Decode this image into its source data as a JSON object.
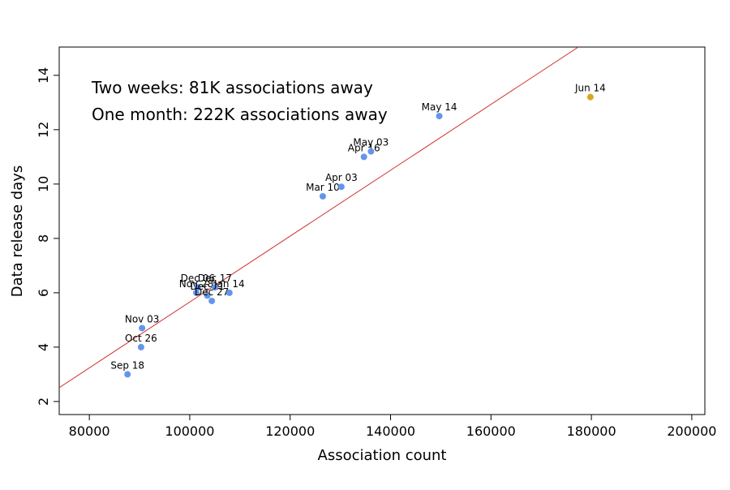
{
  "chart_data": {
    "type": "scatter",
    "xlabel": "Association count",
    "ylabel": "Data release days",
    "annotations": [
      "Two weeks: 81K associations away",
      "One month: 222K associations away"
    ],
    "labels": [
      "Sep 18",
      "Oct 26",
      "Nov 03",
      "Nov 28",
      "Dec 06",
      "Dec 21",
      "Dec 27",
      "Dec 17",
      "Jan 14",
      "Mar 10",
      "Apr 03",
      "Apr 16",
      "May 03",
      "May 14",
      "Jun 14"
    ],
    "x": [
      87600,
      90300,
      90500,
      101300,
      101600,
      103500,
      104400,
      105000,
      107900,
      126500,
      130200,
      134700,
      136100,
      149700,
      179800
    ],
    "y": [
      3.0,
      4.0,
      4.7,
      6.0,
      6.2,
      5.9,
      5.7,
      6.2,
      6.0,
      9.55,
      9.9,
      11.0,
      11.2,
      12.5,
      13.2
    ],
    "colors": [
      "#6495ed",
      "#6495ed",
      "#6495ed",
      "#6495ed",
      "#6495ed",
      "#6495ed",
      "#6495ed",
      "#6495ed",
      "#6495ed",
      "#6495ed",
      "#6495ed",
      "#6495ed",
      "#6495ed",
      "#6495ed",
      "#daa520"
    ],
    "fit_line": {
      "x": [
        74000,
        177400
      ],
      "y": [
        2.51,
        15.04
      ],
      "color": "#cd3333"
    },
    "xlim": [
      74000,
      202600
    ],
    "ylim": [
      1.52,
      15.04
    ],
    "xticks": [
      80000,
      100000,
      120000,
      140000,
      160000,
      180000,
      200000
    ],
    "yticks": [
      2,
      4,
      6,
      8,
      10,
      12,
      14
    ]
  }
}
